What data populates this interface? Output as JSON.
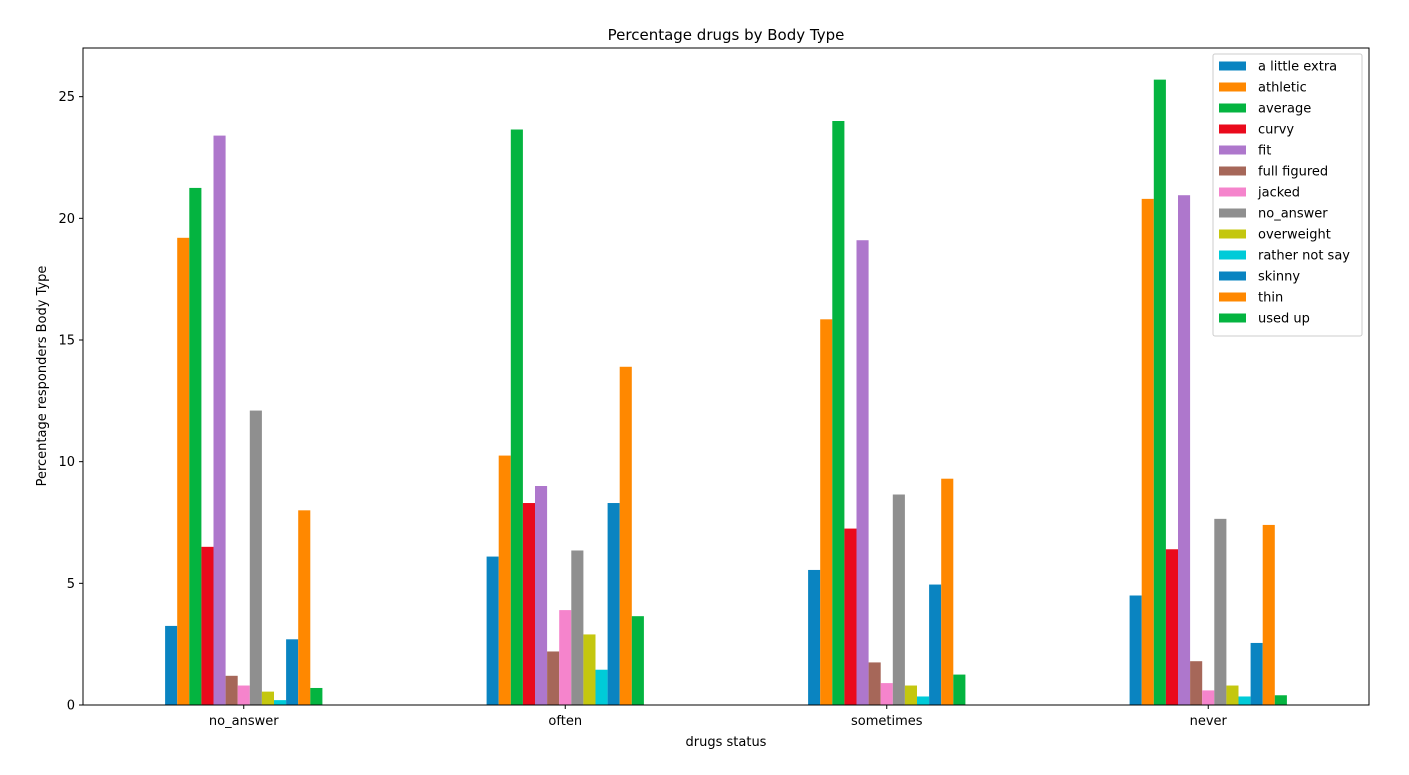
{
  "chart_data": {
    "type": "bar",
    "title": "Percentage drugs by Body Type",
    "xlabel": "drugs status",
    "ylabel": "Percentage responders Body Type",
    "categories": [
      "no_answer",
      "often",
      "sometimes",
      "never"
    ],
    "ylim": [
      0,
      27
    ],
    "yticks": [
      0,
      5,
      10,
      15,
      20,
      25
    ],
    "grid": false,
    "legend_position": "top-right",
    "series": [
      {
        "name": "a little extra",
        "color": "#0a84c1",
        "values": [
          3.25,
          6.1,
          5.55,
          4.5
        ]
      },
      {
        "name": "athletic",
        "color": "#ff8800",
        "values": [
          19.2,
          10.25,
          15.85,
          20.8
        ]
      },
      {
        "name": "average",
        "color": "#04b440",
        "values": [
          21.25,
          23.65,
          24.0,
          25.7
        ]
      },
      {
        "name": "curvy",
        "color": "#ea0a1c",
        "values": [
          6.5,
          8.3,
          7.25,
          6.4
        ]
      },
      {
        "name": "fit",
        "color": "#ae77cc",
        "values": [
          23.4,
          9.0,
          19.1,
          20.95
        ]
      },
      {
        "name": "full figured",
        "color": "#a66759",
        "values": [
          1.2,
          2.2,
          1.75,
          1.8
        ]
      },
      {
        "name": "jacked",
        "color": "#f584cc",
        "values": [
          0.8,
          3.9,
          0.9,
          0.6
        ]
      },
      {
        "name": "no_answer",
        "color": "#8f8f8f",
        "values": [
          12.1,
          6.35,
          8.65,
          7.65
        ]
      },
      {
        "name": "overweight",
        "color": "#c4c70f",
        "values": [
          0.55,
          2.9,
          0.8,
          0.8
        ]
      },
      {
        "name": "rather not say",
        "color": "#00cbd8",
        "values": [
          0.2,
          1.45,
          0.35,
          0.35
        ]
      },
      {
        "name": "skinny",
        "color": "#0a84c1",
        "values": [
          2.7,
          8.3,
          4.95,
          2.55
        ]
      },
      {
        "name": "thin",
        "color": "#ff8800",
        "values": [
          8.0,
          13.9,
          9.3,
          7.4
        ]
      },
      {
        "name": "used up",
        "color": "#04b440",
        "values": [
          0.7,
          3.65,
          1.25,
          0.4
        ]
      }
    ]
  }
}
